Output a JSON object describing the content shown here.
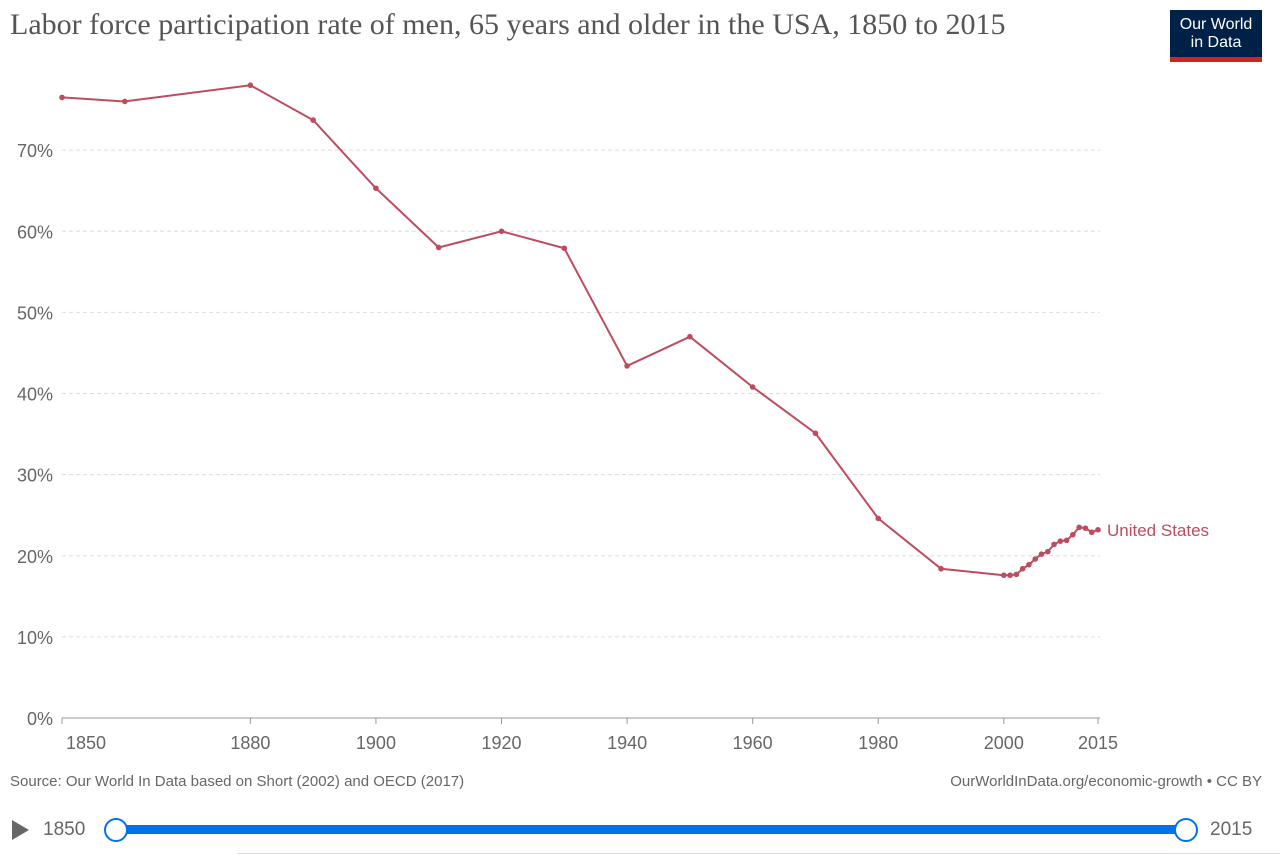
{
  "title": "Labor force participation rate of men, 65 years and older in the USA, 1850 to 2015",
  "logo": {
    "line1": "Our World",
    "line2": "in Data"
  },
  "source": "Source: Our World In Data based on Short (2002) and OECD (2017)",
  "credit": "OurWorldInData.org/economic-growth • CC BY",
  "timeline": {
    "start": "1850",
    "end": "2015",
    "play_icon": "play-icon"
  },
  "colors": {
    "series": "#be4c5f",
    "slider": "#0073e6",
    "logo_bg": "#002147",
    "logo_bar": "#ce261e"
  },
  "chart_data": {
    "type": "line",
    "title": "Labor force participation rate of men, 65 years and older in the USA, 1850 to 2015",
    "xlim": [
      1850,
      2015
    ],
    "ylim": [
      0,
      80
    ],
    "grid": "horizontal dashed",
    "x_ticks": [
      "1850",
      "1880",
      "1900",
      "1920",
      "1940",
      "1960",
      "1980",
      "2000",
      "2015"
    ],
    "y_ticks": [
      "0%",
      "10%",
      "20%",
      "30%",
      "40%",
      "50%",
      "60%",
      "70%"
    ],
    "series": [
      {
        "name": "United States",
        "x": [
          1850,
          1860,
          1880,
          1890,
          1900,
          1910,
          1920,
          1930,
          1940,
          1950,
          1960,
          1970,
          1980,
          1990,
          2000,
          2001,
          2002,
          2003,
          2004,
          2005,
          2006,
          2007,
          2008,
          2009,
          2010,
          2011,
          2012,
          2013,
          2014,
          2015
        ],
        "y": [
          76.5,
          76.0,
          78.0,
          73.7,
          65.3,
          58.0,
          60.0,
          57.9,
          43.4,
          47.0,
          40.8,
          35.1,
          24.6,
          18.4,
          17.6,
          17.6,
          17.7,
          18.4,
          18.9,
          19.6,
          20.2,
          20.5,
          21.4,
          21.8,
          21.9,
          22.6,
          23.5,
          23.4,
          22.9,
          23.2
        ]
      }
    ]
  }
}
